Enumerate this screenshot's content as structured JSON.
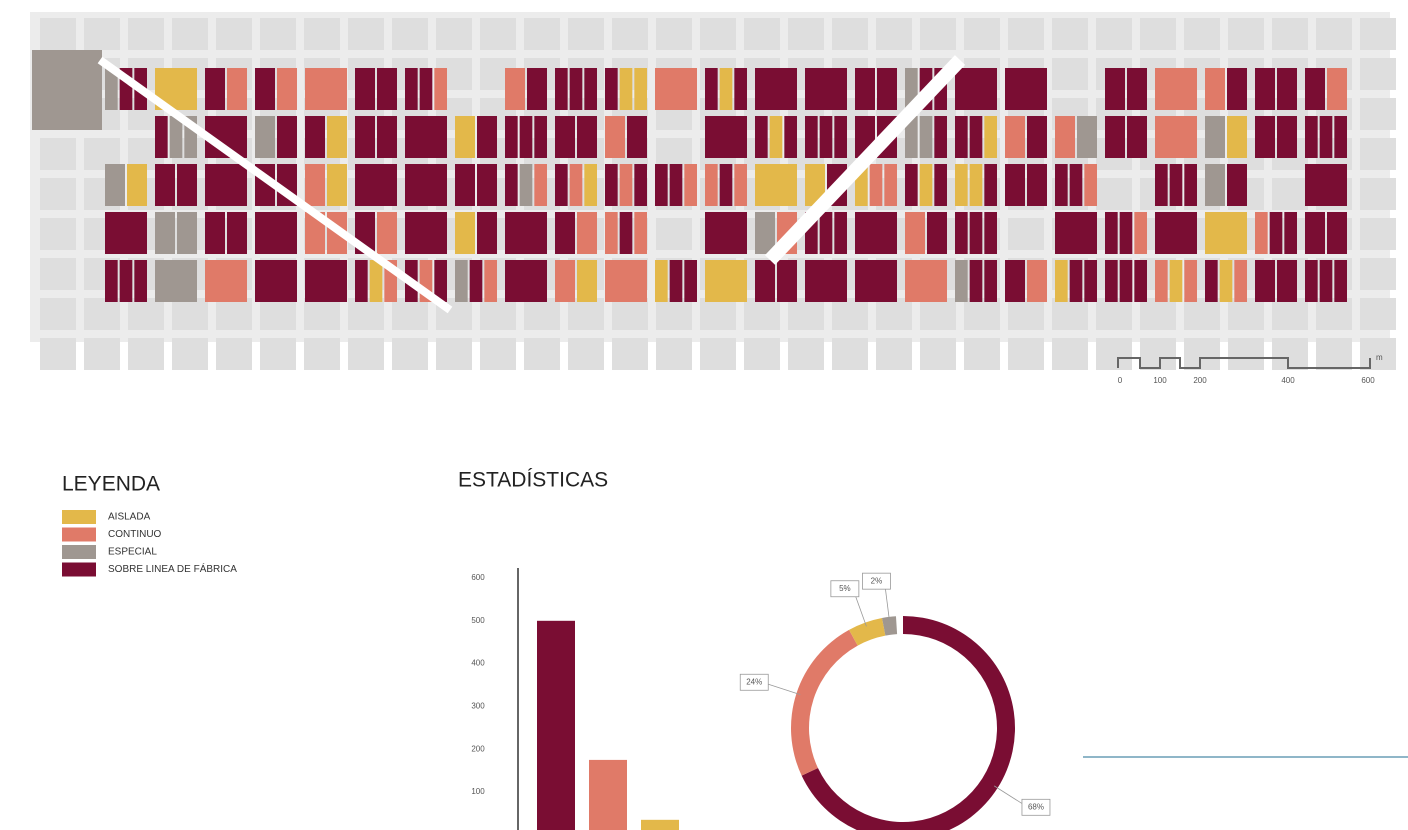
{
  "map": {
    "scale": {
      "labels": [
        "0",
        "100",
        "200",
        "400",
        "600"
      ],
      "unit": "m"
    }
  },
  "legend": {
    "title": "LEYENDA",
    "items": [
      {
        "label": "AISLADA",
        "color": "#e3b84a"
      },
      {
        "label": "CONTINUO",
        "color": "#e07a68"
      },
      {
        "label": "ESPECIAL",
        "color": "#9f9791"
      },
      {
        "label": "SOBRE LINEA DE FÁBRICA",
        "color": "#7a0d33"
      }
    ]
  },
  "stats": {
    "title": "ESTADÍSTICAS"
  },
  "chart_data": [
    {
      "type": "bar",
      "categories": [
        null,
        null,
        null
      ],
      "values": [
        500,
        175,
        35
      ],
      "colors": [
        "#7a0d33",
        "#e07a68",
        "#e3b84a"
      ],
      "ylim": [
        0,
        600
      ],
      "yticks": [
        100,
        200,
        300,
        400,
        500,
        600
      ]
    },
    {
      "type": "pie",
      "values": [
        68,
        24,
        5,
        2
      ],
      "value_labels": [
        "68%",
        "24%",
        "5%",
        "2%"
      ],
      "colors": [
        "#7a0d33",
        "#e07a68",
        "#e3b84a",
        "#9f9791"
      ]
    }
  ]
}
